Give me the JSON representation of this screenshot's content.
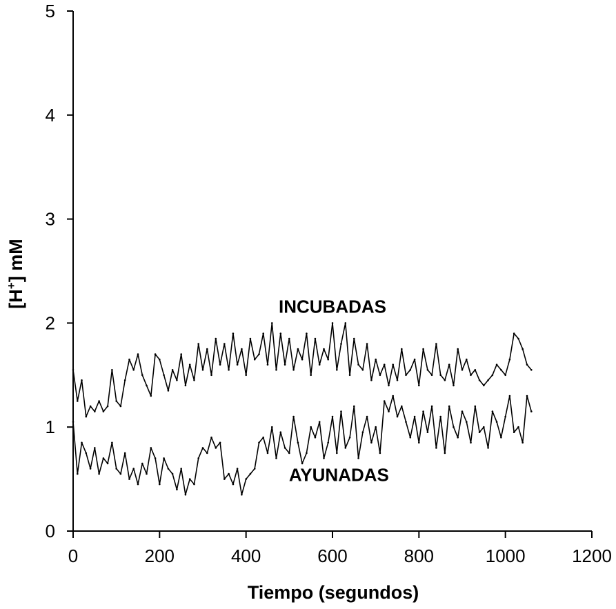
{
  "chart_data": {
    "type": "line",
    "title": "",
    "xlabel": "Tiempo (segundos)",
    "ylabel_main": "[H",
    "ylabel_sup": "+",
    "ylabel_rest": "] mM",
    "xlim": [
      0,
      1200
    ],
    "ylim": [
      0,
      5
    ],
    "grid": false,
    "x_ticks": [
      0,
      200,
      400,
      600,
      800,
      1000,
      1200
    ],
    "x_tick_labels": [
      "0",
      "200",
      "400",
      "600",
      "800",
      "1000",
      "1200"
    ],
    "y_ticks": [
      0,
      1,
      2,
      3,
      4,
      5
    ],
    "y_tick_labels": [
      "0",
      "1",
      "2",
      "3",
      "4",
      "5"
    ],
    "colors": {
      "line": "#000000",
      "axis": "#000000",
      "background": "#ffffff"
    },
    "series": [
      {
        "name": "INCUBADAS",
        "label_anchor": {
          "x": 600,
          "y": 2.1
        },
        "x": [
          0,
          10,
          20,
          30,
          40,
          50,
          60,
          70,
          80,
          90,
          100,
          110,
          120,
          130,
          140,
          150,
          160,
          170,
          180,
          190,
          200,
          210,
          220,
          230,
          240,
          250,
          260,
          270,
          280,
          290,
          300,
          310,
          320,
          330,
          340,
          350,
          360,
          370,
          380,
          390,
          400,
          410,
          420,
          430,
          440,
          450,
          460,
          470,
          480,
          490,
          500,
          510,
          520,
          530,
          540,
          550,
          560,
          570,
          580,
          590,
          600,
          610,
          620,
          630,
          640,
          650,
          660,
          670,
          680,
          690,
          700,
          710,
          720,
          730,
          740,
          750,
          760,
          770,
          780,
          790,
          800,
          810,
          820,
          830,
          840,
          850,
          860,
          870,
          880,
          890,
          900,
          910,
          920,
          930,
          940,
          950,
          960,
          970,
          980,
          990,
          1000,
          1010,
          1020,
          1030,
          1040,
          1050,
          1060
        ],
        "y": [
          1.55,
          1.25,
          1.45,
          1.1,
          1.2,
          1.15,
          1.25,
          1.15,
          1.2,
          1.55,
          1.25,
          1.2,
          1.45,
          1.65,
          1.55,
          1.7,
          1.5,
          1.4,
          1.3,
          1.7,
          1.65,
          1.5,
          1.35,
          1.55,
          1.45,
          1.7,
          1.4,
          1.6,
          1.45,
          1.8,
          1.55,
          1.75,
          1.5,
          1.85,
          1.6,
          1.8,
          1.55,
          1.9,
          1.6,
          1.75,
          1.5,
          1.85,
          1.65,
          1.7,
          1.9,
          1.6,
          2.0,
          1.55,
          1.9,
          1.6,
          1.85,
          1.55,
          1.75,
          1.65,
          1.9,
          1.5,
          1.85,
          1.6,
          1.75,
          1.65,
          2.0,
          1.55,
          1.8,
          2.0,
          1.5,
          1.85,
          1.6,
          1.55,
          1.8,
          1.45,
          1.65,
          1.5,
          1.6,
          1.4,
          1.6,
          1.45,
          1.75,
          1.5,
          1.55,
          1.65,
          1.4,
          1.75,
          1.55,
          1.5,
          1.8,
          1.5,
          1.45,
          1.6,
          1.4,
          1.75,
          1.55,
          1.65,
          1.5,
          1.55,
          1.45,
          1.4,
          1.45,
          1.5,
          1.6,
          1.55,
          1.5,
          1.65,
          1.9,
          1.85,
          1.75,
          1.6,
          1.55
        ]
      },
      {
        "name": "AYUNADAS",
        "label_anchor": {
          "x": 615,
          "y": 0.48
        },
        "x": [
          0,
          10,
          20,
          30,
          40,
          50,
          60,
          70,
          80,
          90,
          100,
          110,
          120,
          130,
          140,
          150,
          160,
          170,
          180,
          190,
          200,
          210,
          220,
          230,
          240,
          250,
          260,
          270,
          280,
          290,
          300,
          310,
          320,
          330,
          340,
          350,
          360,
          370,
          380,
          390,
          400,
          410,
          420,
          430,
          440,
          450,
          460,
          470,
          480,
          490,
          500,
          510,
          520,
          530,
          540,
          550,
          560,
          570,
          580,
          590,
          600,
          610,
          620,
          630,
          640,
          650,
          660,
          670,
          680,
          690,
          700,
          710,
          720,
          730,
          740,
          750,
          760,
          770,
          780,
          790,
          800,
          810,
          820,
          830,
          840,
          850,
          860,
          870,
          880,
          890,
          900,
          910,
          920,
          930,
          940,
          950,
          960,
          970,
          980,
          990,
          1000,
          1010,
          1020,
          1030,
          1040,
          1050,
          1060
        ],
        "y": [
          1.05,
          0.55,
          0.85,
          0.75,
          0.6,
          0.8,
          0.55,
          0.7,
          0.65,
          0.85,
          0.6,
          0.55,
          0.75,
          0.5,
          0.6,
          0.45,
          0.65,
          0.55,
          0.8,
          0.7,
          0.45,
          0.7,
          0.6,
          0.55,
          0.4,
          0.6,
          0.35,
          0.5,
          0.45,
          0.7,
          0.8,
          0.75,
          0.9,
          0.8,
          0.85,
          0.5,
          0.55,
          0.45,
          0.6,
          0.35,
          0.5,
          0.55,
          0.6,
          0.85,
          0.9,
          0.75,
          1.0,
          0.7,
          0.95,
          0.8,
          0.75,
          1.1,
          0.85,
          0.65,
          0.75,
          1.0,
          0.9,
          1.05,
          0.7,
          0.85,
          1.1,
          0.75,
          1.15,
          0.8,
          0.9,
          1.2,
          0.7,
          0.95,
          1.1,
          0.85,
          1.0,
          0.75,
          1.25,
          1.15,
          1.3,
          1.1,
          1.2,
          1.05,
          0.9,
          1.1,
          0.85,
          1.15,
          0.95,
          1.2,
          0.8,
          1.1,
          0.75,
          1.2,
          1.0,
          0.9,
          1.15,
          1.05,
          0.85,
          1.2,
          0.95,
          1.0,
          0.8,
          1.15,
          1.05,
          0.9,
          1.1,
          1.3,
          0.95,
          1.0,
          0.85,
          1.3,
          1.15
        ]
      }
    ]
  }
}
